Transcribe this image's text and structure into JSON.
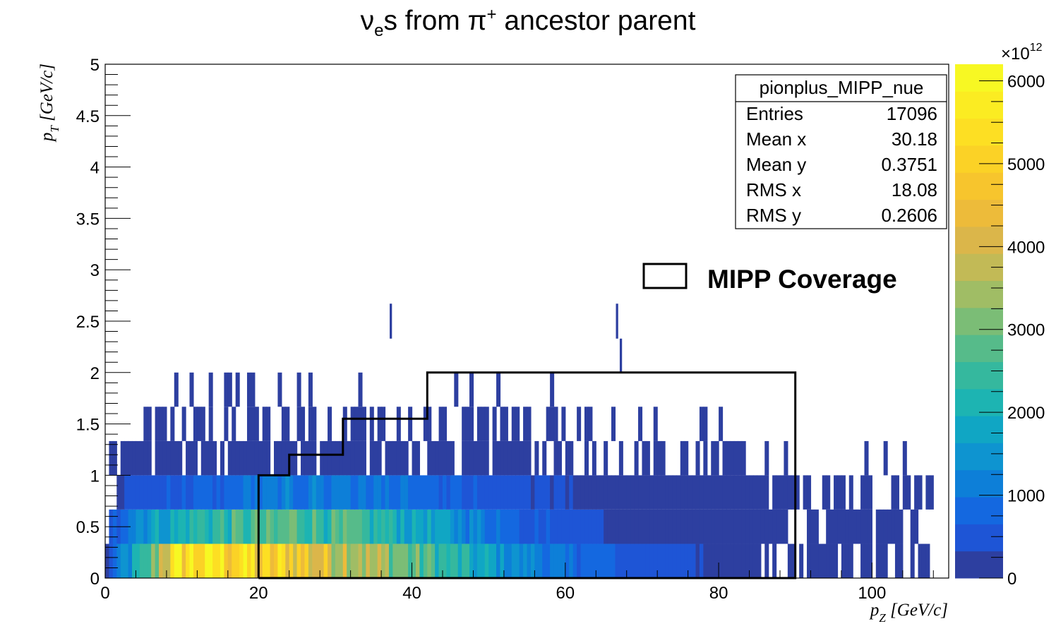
{
  "chart_data": {
    "type": "heatmap",
    "title": {
      "nu": "ν",
      "nu_sub": "e",
      "rest1": "s from ",
      "pi": "π",
      "pi_sup": "+",
      "rest2": " ancestor parent"
    },
    "xlabel": {
      "main": "p",
      "sub": "Z",
      "unit": " [GeV/c]"
    },
    "ylabel": {
      "main": "p",
      "sub": "T",
      "unit": " [GeV/c]"
    },
    "xlim": [
      0,
      110
    ],
    "ylim": [
      0,
      5
    ],
    "x_ticks": [
      0,
      20,
      40,
      60,
      80,
      100
    ],
    "y_ticks": [
      0,
      0.5,
      1,
      1.5,
      2,
      2.5,
      3,
      3.5,
      4,
      4.5,
      5
    ],
    "x_tick_labels": [
      "0",
      "20",
      "40",
      "60",
      "80",
      "100"
    ],
    "y_tick_labels": [
      "0",
      "0.5",
      "1",
      "1.5",
      "2",
      "2.5",
      "3",
      "3.5",
      "4",
      "4.5",
      "5"
    ],
    "colorbar": {
      "range": [
        0,
        6200
      ],
      "ticks": [
        0,
        1000,
        2000,
        3000,
        4000,
        5000,
        6000
      ],
      "tick_labels": [
        "0",
        "1000",
        "2000",
        "3000",
        "4000",
        "5000",
        "6000"
      ],
      "exponent_base": "×10",
      "exponent_power": "12",
      "colors": [
        "#2d3fa0",
        "#1e55d6",
        "#1468e0",
        "#0d7fd8",
        "#0e94d0",
        "#10a6c4",
        "#1db4b2",
        "#35b89e",
        "#56bb8a",
        "#7bbd76",
        "#a0bd65",
        "#c2ba56",
        "#dbb64a",
        "#edbb3a",
        "#f7c52d",
        "#fbd226",
        "#fddf23",
        "#fbec22",
        "#f7f823"
      ]
    },
    "stats": {
      "name": "pionplus_MIPP_nue",
      "rows": [
        {
          "label": "Entries",
          "value": "17096"
        },
        {
          "label": "Mean x",
          "value": "30.18"
        },
        {
          "label": "Mean y",
          "value": "0.3751"
        },
        {
          "label": "RMS x",
          "value": "18.08"
        },
        {
          "label": "RMS y",
          "value": "0.2606"
        }
      ]
    },
    "legend": {
      "label": "MIPP Coverage"
    },
    "coverage_outline": [
      [
        20,
        0
      ],
      [
        20,
        1
      ],
      [
        24,
        1
      ],
      [
        24,
        1.2
      ],
      [
        31,
        1.2
      ],
      [
        31,
        1.55
      ],
      [
        42,
        1.55
      ],
      [
        42,
        2
      ],
      [
        90,
        2
      ],
      [
        90,
        0
      ],
      [
        20,
        0
      ]
    ],
    "bin_widths": {
      "x": 0.5,
      "y": 0.333
    },
    "bands": [
      {
        "y0": 0,
        "y1": 0.333,
        "x0": 0,
        "x1": 107.5,
        "profile": [
          [
            0,
            300
          ],
          [
            2,
            1200
          ],
          [
            5,
            2200
          ],
          [
            7,
            3800
          ],
          [
            9,
            5200
          ],
          [
            12,
            5600
          ],
          [
            15,
            5500
          ],
          [
            19,
            5200
          ],
          [
            20,
            4600
          ],
          [
            24,
            4900
          ],
          [
            28,
            4200
          ],
          [
            31,
            4000
          ],
          [
            35,
            3500
          ],
          [
            40,
            2800
          ],
          [
            45,
            2200
          ],
          [
            50,
            1600
          ],
          [
            55,
            1200
          ],
          [
            60,
            900
          ],
          [
            65,
            700
          ],
          [
            70,
            500
          ],
          [
            75,
            400
          ],
          [
            80,
            250
          ],
          [
            85,
            200
          ],
          [
            90,
            150
          ],
          [
            95,
            80
          ],
          [
            100,
            40
          ],
          [
            107,
            20
          ]
        ]
      },
      {
        "y0": 0.333,
        "y1": 0.667,
        "x0": 0.5,
        "x1": 106,
        "profile": [
          [
            0,
            300
          ],
          [
            3,
            1200
          ],
          [
            6,
            1700
          ],
          [
            10,
            2000
          ],
          [
            14,
            2300
          ],
          [
            20,
            2600
          ],
          [
            25,
            2700
          ],
          [
            30,
            2500
          ],
          [
            35,
            2200
          ],
          [
            40,
            1800
          ],
          [
            45,
            1400
          ],
          [
            50,
            1000
          ],
          [
            55,
            700
          ],
          [
            60,
            500
          ],
          [
            65,
            350
          ],
          [
            70,
            250
          ],
          [
            75,
            150
          ],
          [
            80,
            100
          ],
          [
            85,
            80
          ],
          [
            90,
            60
          ],
          [
            95,
            40
          ],
          [
            106,
            15
          ]
        ]
      },
      {
        "y0": 0.667,
        "y1": 1.0,
        "x0": 1.5,
        "x1": 108,
        "profile": [
          [
            0,
            100
          ],
          [
            3,
            400
          ],
          [
            8,
            650
          ],
          [
            15,
            800
          ],
          [
            20,
            1000
          ],
          [
            25,
            1100
          ],
          [
            30,
            1100
          ],
          [
            35,
            950
          ],
          [
            40,
            800
          ],
          [
            45,
            650
          ],
          [
            50,
            500
          ],
          [
            55,
            380
          ],
          [
            60,
            300
          ],
          [
            65,
            220
          ],
          [
            70,
            150
          ],
          [
            75,
            100
          ],
          [
            80,
            60
          ],
          [
            85,
            40
          ],
          [
            90,
            30
          ],
          [
            100,
            10
          ],
          [
            108,
            5
          ]
        ]
      },
      {
        "y0": 1.0,
        "y1": 1.333,
        "x0": 0.5,
        "x1": 107.5,
        "sparse": true
      },
      {
        "y0": 1.333,
        "y1": 1.667,
        "x0": 5,
        "x1": 82,
        "sparse": true
      },
      {
        "y0": 1.667,
        "y1": 2.0,
        "x0": 9,
        "x1": 67,
        "sparse": true
      }
    ],
    "isolated_bins": [
      {
        "x": 37.25,
        "y0": 2.33,
        "y1": 2.67
      },
      {
        "x": 66.75,
        "y0": 2.33,
        "y1": 2.67
      },
      {
        "x": 67.25,
        "y0": 2.0,
        "y1": 2.33
      }
    ]
  }
}
